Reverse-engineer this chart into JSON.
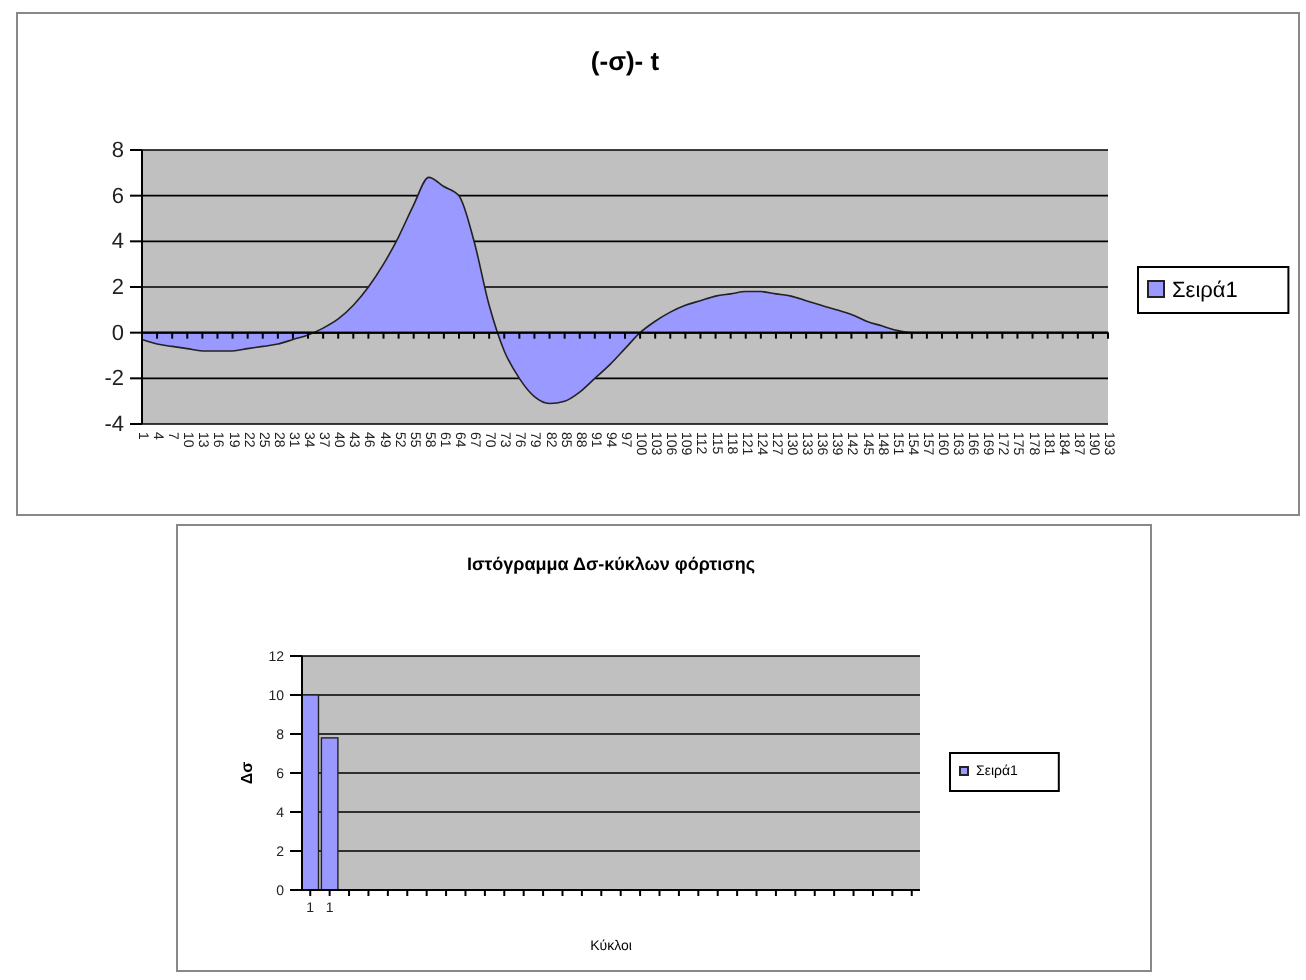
{
  "chart_data": [
    {
      "type": "area",
      "title": "(-σ)- t",
      "categories": [
        "1",
        "4",
        "7",
        "10",
        "13",
        "16",
        "19",
        "22",
        "25",
        "28",
        "31",
        "34",
        "37",
        "40",
        "43",
        "46",
        "49",
        "52",
        "55",
        "58",
        "61",
        "64",
        "67",
        "70",
        "73",
        "76",
        "79",
        "82",
        "85",
        "88",
        "91",
        "94",
        "97",
        "100",
        "103",
        "106",
        "109",
        "112",
        "115",
        "118",
        "121",
        "124",
        "127",
        "130",
        "133",
        "136",
        "139",
        "142",
        "145",
        "148",
        "151",
        "154",
        "157",
        "160",
        "163",
        "166",
        "169",
        "172",
        "175",
        "178",
        "181",
        "184",
        "187",
        "190",
        "193"
      ],
      "series": [
        {
          "name": "Σειρά1",
          "color": "#9999ff",
          "values": [
            -0.3,
            -0.5,
            -0.6,
            -0.7,
            -0.8,
            -0.8,
            -0.8,
            -0.7,
            -0.6,
            -0.5,
            -0.3,
            -0.1,
            0.2,
            0.6,
            1.2,
            2.0,
            3.0,
            4.2,
            5.6,
            6.8,
            6.4,
            6.0,
            4.0,
            1.2,
            -0.8,
            -2.0,
            -2.8,
            -3.1,
            -3.0,
            -2.6,
            -2.0,
            -1.4,
            -0.7,
            0,
            0.5,
            0.9,
            1.2,
            1.4,
            1.6,
            1.7,
            1.8,
            1.8,
            1.7,
            1.6,
            1.4,
            1.2,
            1.0,
            0.8,
            0.5,
            0.3,
            0.1,
            0,
            0,
            0,
            0,
            0,
            0,
            0,
            0,
            0,
            0,
            0,
            0,
            0,
            0
          ]
        }
      ],
      "ylim": [
        -4,
        8
      ],
      "yticks": [
        -4,
        -2,
        0,
        2,
        4,
        6,
        8
      ],
      "grid": "y",
      "legend": "right"
    },
    {
      "type": "bar",
      "title": "Ιστόγραμμα  Δσ-κύκλων φόρτισης",
      "xlabel": "Κύκλοι",
      "ylabel": "Δσ",
      "categories": [
        "1",
        "1",
        null,
        null,
        null,
        null,
        null,
        null,
        null,
        null,
        null,
        null,
        null,
        null,
        null,
        null,
        null,
        null,
        null,
        null,
        null,
        null,
        null,
        null,
        null,
        null,
        null,
        null,
        null,
        null,
        null,
        null
      ],
      "series": [
        {
          "name": "Σειρά1",
          "color": "#9999ff",
          "values": [
            10,
            7.8,
            null,
            null,
            null,
            null,
            null,
            null,
            null,
            null,
            null,
            null,
            null,
            null,
            null,
            null,
            null,
            null,
            null,
            null,
            null,
            null,
            null,
            null,
            null,
            null,
            null,
            null,
            null,
            null,
            null,
            null
          ]
        }
      ],
      "ylim": [
        0,
        12
      ],
      "yticks": [
        0,
        2,
        4,
        6,
        8,
        10,
        12
      ],
      "grid": "y",
      "legend": "right"
    }
  ]
}
